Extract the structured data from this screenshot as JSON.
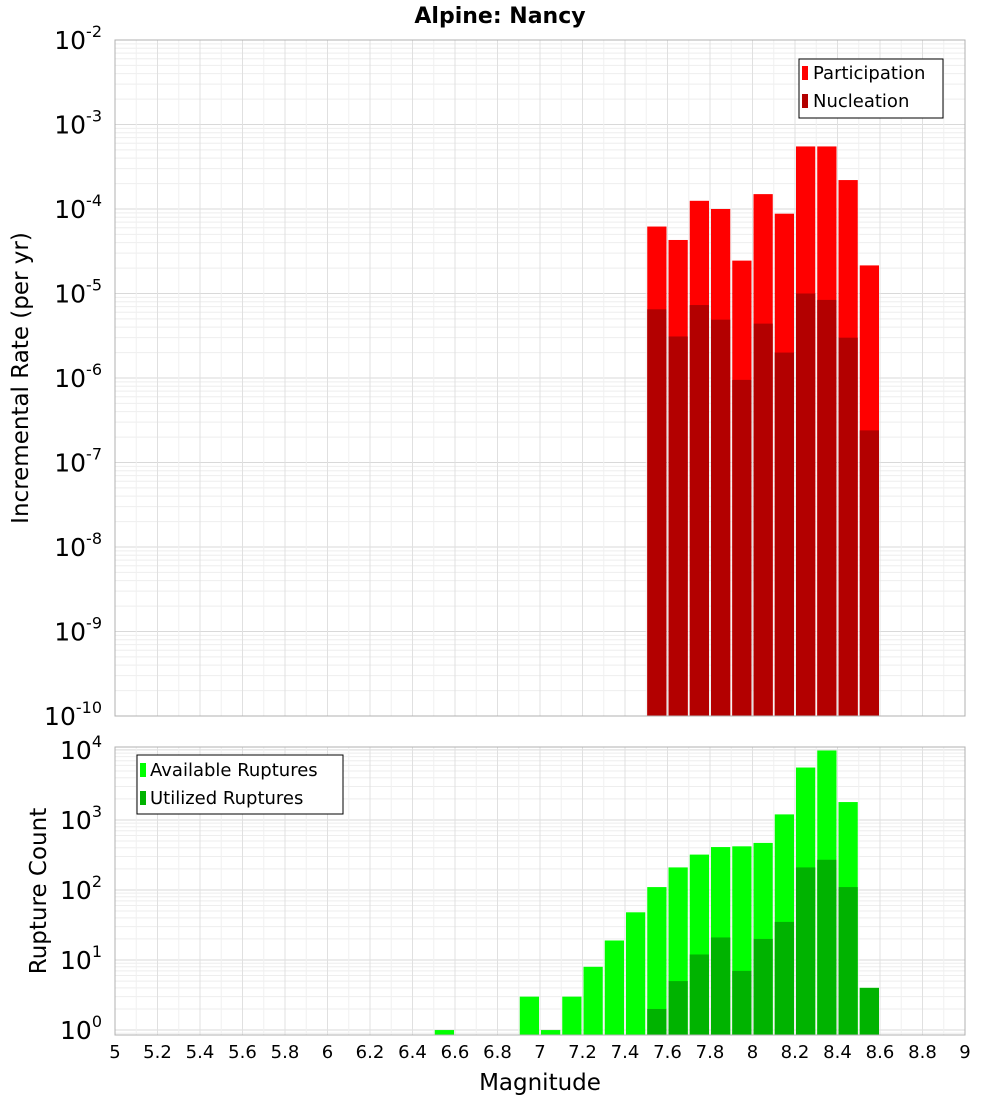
{
  "chart_data": [
    {
      "type": "bar",
      "title": "Alpine: Nancy",
      "xlabel": "",
      "ylabel": "Incremental Rate (per yr)",
      "yscale": "log",
      "xlim": [
        5,
        9
      ],
      "ylim": [
        1e-10,
        0.01
      ],
      "y_ticks": [
        {
          "base": "10",
          "exp": "-10"
        },
        {
          "base": "10",
          "exp": "-9"
        },
        {
          "base": "10",
          "exp": "-8"
        },
        {
          "base": "10",
          "exp": "-7"
        },
        {
          "base": "10",
          "exp": "-6"
        },
        {
          "base": "10",
          "exp": "-5"
        },
        {
          "base": "10",
          "exp": "-4"
        },
        {
          "base": "10",
          "exp": "-3"
        },
        {
          "base": "10",
          "exp": "-2"
        }
      ],
      "grid": true,
      "legend_position": "top-right",
      "bar_overlay": true,
      "x": [
        7.55,
        7.65,
        7.75,
        7.85,
        7.95,
        8.05,
        8.15,
        8.25,
        8.35,
        8.45,
        8.55
      ],
      "series": [
        {
          "name": "Participation",
          "color": "#ff0000",
          "values": [
            6.2e-05,
            4.3e-05,
            0.000125,
            0.0001,
            2.45e-05,
            0.00015,
            8.8e-05,
            0.00055,
            0.00055,
            0.00022,
            2.15e-05
          ]
        },
        {
          "name": "Nucleation",
          "color": "#b30000",
          "values": [
            6.5e-06,
            3.1e-06,
            7.3e-06,
            4.9e-06,
            9.5e-07,
            4.4e-06,
            2e-06,
            1e-05,
            8.4e-06,
            3e-06,
            2.4e-07
          ]
        }
      ]
    },
    {
      "type": "bar",
      "title": "",
      "xlabel": "Magnitude",
      "ylabel": "Rupture Count",
      "yscale": "log",
      "xlim": [
        5,
        9
      ],
      "ylim": [
        0.85,
        11000
      ],
      "y_ticks": [
        {
          "base": "10",
          "exp": "0"
        },
        {
          "base": "10",
          "exp": "1"
        },
        {
          "base": "10",
          "exp": "2"
        },
        {
          "base": "10",
          "exp": "3"
        },
        {
          "base": "10",
          "exp": "4"
        }
      ],
      "x_tick_labels": [
        "5",
        "5.2",
        "5.4",
        "5.6",
        "5.8",
        "6",
        "6.2",
        "6.4",
        "6.6",
        "6.8",
        "7",
        "7.2",
        "7.4",
        "7.6",
        "7.8",
        "8",
        "8.2",
        "8.4",
        "8.6",
        "8.8",
        "9"
      ],
      "grid": true,
      "legend_position": "top-left",
      "bar_overlay": true,
      "series": [
        {
          "name": "Available Ruptures",
          "color": "#00ff00",
          "x": [
            6.55,
            6.95,
            7.05,
            7.15,
            7.25,
            7.35,
            7.45,
            7.55,
            7.65,
            7.75,
            7.85,
            7.95,
            8.05,
            8.15,
            8.25,
            8.35,
            8.45,
            8.55
          ],
          "values": [
            1,
            3,
            1,
            3,
            8,
            19,
            48,
            110,
            210,
            320,
            410,
            420,
            470,
            1200,
            5600,
            9800,
            1800,
            4
          ]
        },
        {
          "name": "Utilized Ruptures",
          "color": "#00b300",
          "x": [
            7.55,
            7.65,
            7.75,
            7.85,
            7.95,
            8.05,
            8.15,
            8.25,
            8.35,
            8.45,
            8.55
          ],
          "values": [
            2,
            5,
            12,
            21,
            7,
            20,
            35,
            210,
            270,
            110,
            4
          ]
        }
      ]
    }
  ]
}
